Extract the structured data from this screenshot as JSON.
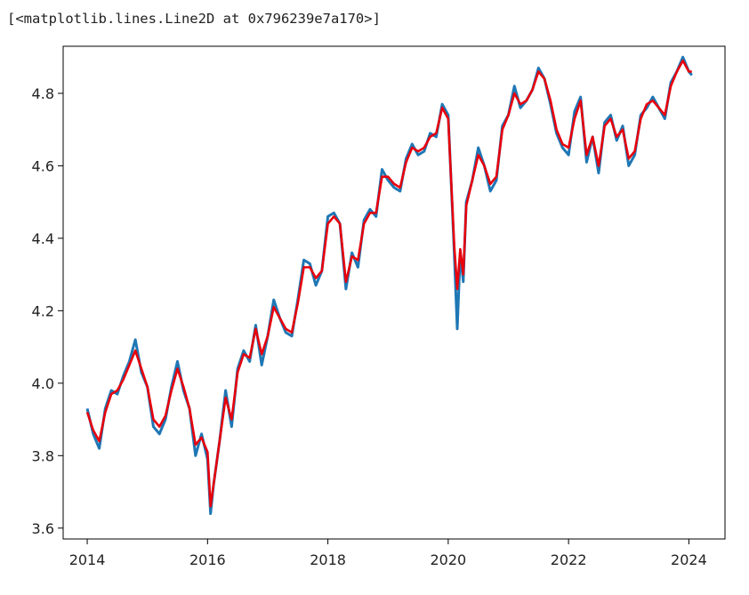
{
  "output_text": "[<matplotlib.lines.Line2D at 0x796239e7a170>]",
  "chart_data": {
    "type": "line",
    "title": "",
    "xlabel": "",
    "ylabel": "",
    "xlim": [
      2013.6,
      2024.6
    ],
    "ylim": [
      3.57,
      4.93
    ],
    "xticks": [
      2014,
      2016,
      2018,
      2020,
      2022,
      2024
    ],
    "xtick_labels": [
      "2014",
      "2016",
      "2018",
      "2020",
      "2022",
      "2024"
    ],
    "yticks": [
      3.6,
      3.8,
      4.0,
      4.2,
      4.4,
      4.6,
      4.8
    ],
    "ytick_labels": [
      "3.6",
      "3.8",
      "4.0",
      "4.2",
      "4.4",
      "4.6",
      "4.8"
    ],
    "grid": false,
    "series": [
      {
        "color": "#1f77b4",
        "x": [
          2014.0,
          2014.1,
          2014.2,
          2014.3,
          2014.4,
          2014.5,
          2014.6,
          2014.7,
          2014.8,
          2014.9,
          2015.0,
          2015.1,
          2015.2,
          2015.3,
          2015.4,
          2015.5,
          2015.6,
          2015.7,
          2015.8,
          2015.9,
          2016.0,
          2016.05,
          2016.1,
          2016.2,
          2016.3,
          2016.4,
          2016.5,
          2016.6,
          2016.7,
          2016.8,
          2016.9,
          2017.0,
          2017.1,
          2017.2,
          2017.3,
          2017.4,
          2017.5,
          2017.6,
          2017.7,
          2017.8,
          2017.9,
          2018.0,
          2018.1,
          2018.2,
          2018.3,
          2018.4,
          2018.5,
          2018.6,
          2018.7,
          2018.8,
          2018.9,
          2019.0,
          2019.1,
          2019.2,
          2019.3,
          2019.4,
          2019.5,
          2019.6,
          2019.7,
          2019.8,
          2019.9,
          2020.0,
          2020.1,
          2020.15,
          2020.2,
          2020.25,
          2020.3,
          2020.4,
          2020.5,
          2020.6,
          2020.7,
          2020.8,
          2020.9,
          2021.0,
          2021.1,
          2021.2,
          2021.3,
          2021.4,
          2021.5,
          2021.6,
          2021.7,
          2021.8,
          2021.9,
          2022.0,
          2022.1,
          2022.2,
          2022.3,
          2022.4,
          2022.5,
          2022.6,
          2022.7,
          2022.8,
          2022.9,
          2023.0,
          2023.1,
          2023.2,
          2023.3,
          2023.4,
          2023.5,
          2023.6,
          2023.7,
          2023.8,
          2023.9,
          2024.0,
          2024.05
        ],
        "values": [
          3.93,
          3.86,
          3.82,
          3.93,
          3.98,
          3.97,
          4.02,
          4.06,
          4.12,
          4.03,
          3.99,
          3.88,
          3.86,
          3.9,
          3.99,
          4.06,
          3.98,
          3.93,
          3.8,
          3.86,
          3.79,
          3.64,
          3.72,
          3.84,
          3.98,
          3.88,
          4.04,
          4.09,
          4.06,
          4.16,
          4.05,
          4.13,
          4.23,
          4.18,
          4.14,
          4.13,
          4.23,
          4.34,
          4.33,
          4.27,
          4.31,
          4.46,
          4.47,
          4.44,
          4.26,
          4.36,
          4.32,
          4.45,
          4.48,
          4.46,
          4.59,
          4.56,
          4.54,
          4.53,
          4.62,
          4.66,
          4.63,
          4.64,
          4.69,
          4.68,
          4.77,
          4.74,
          4.36,
          4.15,
          4.36,
          4.28,
          4.5,
          4.56,
          4.65,
          4.6,
          4.53,
          4.56,
          4.71,
          4.74,
          4.82,
          4.76,
          4.78,
          4.81,
          4.87,
          4.84,
          4.77,
          4.69,
          4.65,
          4.63,
          4.75,
          4.79,
          4.61,
          4.68,
          4.58,
          4.72,
          4.74,
          4.67,
          4.71,
          4.6,
          4.63,
          4.74,
          4.76,
          4.79,
          4.76,
          4.73,
          4.83,
          4.86,
          4.9,
          4.86,
          4.85
        ]
      },
      {
        "color": "#e8000b",
        "x": [
          2014.0,
          2014.1,
          2014.2,
          2014.3,
          2014.4,
          2014.5,
          2014.6,
          2014.7,
          2014.8,
          2014.9,
          2015.0,
          2015.1,
          2015.2,
          2015.3,
          2015.4,
          2015.5,
          2015.6,
          2015.7,
          2015.8,
          2015.9,
          2016.0,
          2016.05,
          2016.1,
          2016.2,
          2016.3,
          2016.4,
          2016.5,
          2016.6,
          2016.7,
          2016.8,
          2016.9,
          2017.0,
          2017.1,
          2017.2,
          2017.3,
          2017.4,
          2017.5,
          2017.6,
          2017.7,
          2017.8,
          2017.9,
          2018.0,
          2018.1,
          2018.2,
          2018.3,
          2018.4,
          2018.5,
          2018.6,
          2018.7,
          2018.8,
          2018.9,
          2019.0,
          2019.1,
          2019.2,
          2019.3,
          2019.4,
          2019.5,
          2019.6,
          2019.7,
          2019.8,
          2019.9,
          2020.0,
          2020.1,
          2020.15,
          2020.2,
          2020.25,
          2020.3,
          2020.4,
          2020.5,
          2020.6,
          2020.7,
          2020.8,
          2020.9,
          2021.0,
          2021.1,
          2021.2,
          2021.3,
          2021.4,
          2021.5,
          2021.6,
          2021.7,
          2021.8,
          2021.9,
          2022.0,
          2022.1,
          2022.2,
          2022.3,
          2022.4,
          2022.5,
          2022.6,
          2022.7,
          2022.8,
          2022.9,
          2023.0,
          2023.1,
          2023.2,
          2023.3,
          2023.4,
          2023.5,
          2023.6,
          2023.7,
          2023.8,
          2023.9,
          2024.0,
          2024.05
        ],
        "values": [
          3.92,
          3.87,
          3.84,
          3.92,
          3.97,
          3.98,
          4.01,
          4.05,
          4.09,
          4.04,
          3.99,
          3.9,
          3.88,
          3.91,
          3.98,
          4.04,
          3.99,
          3.93,
          3.83,
          3.85,
          3.81,
          3.66,
          3.72,
          3.84,
          3.96,
          3.9,
          4.03,
          4.08,
          4.07,
          4.15,
          4.08,
          4.13,
          4.21,
          4.18,
          4.15,
          4.14,
          4.22,
          4.32,
          4.32,
          4.29,
          4.31,
          4.44,
          4.46,
          4.44,
          4.28,
          4.35,
          4.34,
          4.44,
          4.47,
          4.47,
          4.57,
          4.57,
          4.55,
          4.54,
          4.61,
          4.65,
          4.64,
          4.65,
          4.68,
          4.69,
          4.76,
          4.73,
          4.38,
          4.26,
          4.37,
          4.3,
          4.49,
          4.56,
          4.63,
          4.6,
          4.55,
          4.57,
          4.7,
          4.74,
          4.8,
          4.77,
          4.78,
          4.81,
          4.86,
          4.84,
          4.78,
          4.7,
          4.66,
          4.65,
          4.73,
          4.78,
          4.63,
          4.68,
          4.6,
          4.71,
          4.73,
          4.68,
          4.7,
          4.62,
          4.64,
          4.73,
          4.77,
          4.78,
          4.76,
          4.74,
          4.82,
          4.86,
          4.89,
          4.86,
          4.86
        ]
      }
    ]
  }
}
